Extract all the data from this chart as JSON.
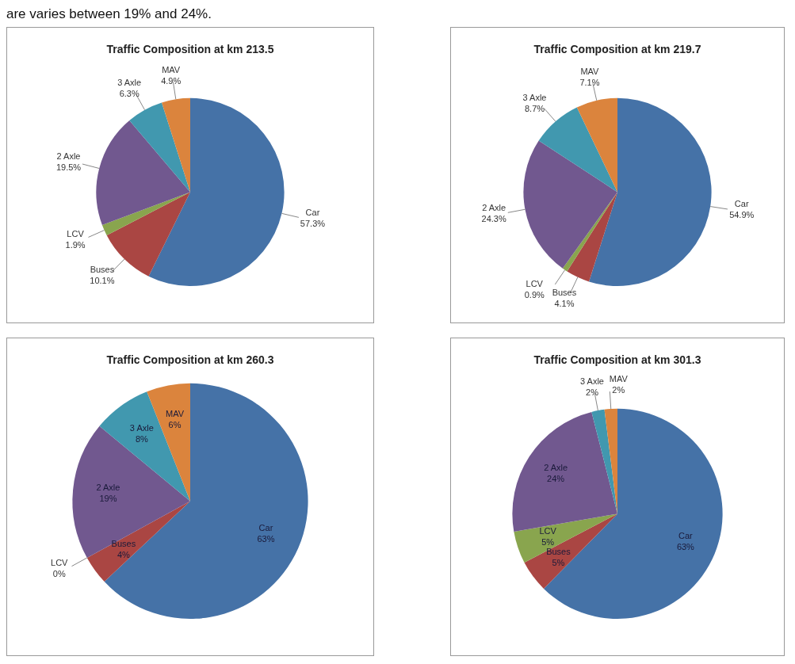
{
  "chart_data": [
    {
      "type": "pie",
      "title": "Traffic Composition at km 213.5",
      "categories": [
        "Car",
        "Buses",
        "LCV",
        "2 Axle",
        "3 Axle",
        "MAV"
      ],
      "values": [
        57.3,
        10.1,
        1.9,
        19.5,
        6.3,
        4.9
      ],
      "value_labels": [
        "57.3%",
        "10.1%",
        "1.9%",
        "19.5%",
        "6.3%",
        "4.9%"
      ],
      "colors": [
        "#4572a7",
        "#aa4643",
        "#89a54e",
        "#71588f",
        "#4198af",
        "#db843d"
      ],
      "annotations": [
        "are varies between 19% and 24%."
      ]
    },
    {
      "type": "pie",
      "title": "Traffic Composition at km 219.7",
      "categories": [
        "Car",
        "Buses",
        "LCV",
        "2 Axle",
        "3 Axle",
        "MAV"
      ],
      "values": [
        54.9,
        4.1,
        0.9,
        24.3,
        8.7,
        7.1
      ],
      "value_labels": [
        "54.9%",
        "4.1%",
        "0.9%",
        "24.3%",
        "8.7%",
        "7.1%"
      ],
      "colors": [
        "#4572a7",
        "#aa4643",
        "#89a54e",
        "#71588f",
        "#4198af",
        "#db843d"
      ]
    },
    {
      "type": "pie",
      "title": "Traffic Composition at km 260.3",
      "categories": [
        "Car",
        "Buses",
        "LCV",
        "2 Axle",
        "3 Axle",
        "MAV"
      ],
      "values": [
        63,
        4,
        0,
        19,
        8,
        6
      ],
      "value_labels": [
        "63%",
        "4%",
        "0%",
        "19%",
        "8%",
        "6%"
      ],
      "colors": [
        "#4572a7",
        "#aa4643",
        "#89a54e",
        "#71588f",
        "#4198af",
        "#db843d"
      ]
    },
    {
      "type": "pie",
      "title": "Traffic Composition at km 301.3",
      "categories": [
        "Car",
        "Buses",
        "LCV",
        "2 Axle",
        "3 Axle",
        "MAV"
      ],
      "values": [
        63,
        5,
        5,
        24,
        2,
        2
      ],
      "value_labels": [
        "63%",
        "5%",
        "5%",
        "24%",
        "2%",
        "2%"
      ],
      "colors": [
        "#4572a7",
        "#aa4643",
        "#89a54e",
        "#71588f",
        "#4198af",
        "#db843d"
      ]
    }
  ]
}
